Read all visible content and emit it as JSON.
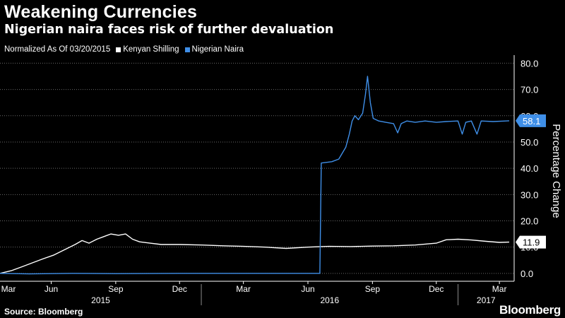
{
  "header": {
    "title": "Weakening Currencies",
    "subtitle": "Nigerian naira faces risk of further devaluation"
  },
  "legend": {
    "note": "Normalized As Of 03/20/2015",
    "items": [
      {
        "label": "Kenyan Shilling",
        "color": "#ffffff"
      },
      {
        "label": "Nigerian Naira",
        "color": "#3f8fe8"
      }
    ]
  },
  "footer": {
    "source": "Source: Bloomberg",
    "brand": "Bloomberg"
  },
  "chart_data": {
    "type": "line",
    "ylabel": "Percentage Change",
    "ylim": [
      -3,
      82
    ],
    "y_ticks": [
      {
        "value": 0,
        "label": "0.0"
      },
      {
        "value": 10,
        "label": "10.0"
      },
      {
        "value": 20,
        "label": "20.0"
      },
      {
        "value": 30,
        "label": "30.0"
      },
      {
        "value": 40,
        "label": "40.0"
      },
      {
        "value": 50,
        "label": "50.0"
      },
      {
        "value": 60,
        "label": "60.0"
      },
      {
        "value": 70,
        "label": "70.0"
      },
      {
        "value": 80,
        "label": "80.0"
      }
    ],
    "xlim": [
      "2015-03-20",
      "2017-03-22"
    ],
    "x_ticks": [
      {
        "date": "2015-03-01",
        "label": "Mar"
      },
      {
        "date": "2015-06-01",
        "label": "Jun"
      },
      {
        "date": "2015-09-01",
        "label": "Sep"
      },
      {
        "date": "2015-12-01",
        "label": "Dec"
      },
      {
        "date": "2016-03-01",
        "label": "Mar"
      },
      {
        "date": "2016-06-01",
        "label": "Jun"
      },
      {
        "date": "2016-09-01",
        "label": "Sep"
      },
      {
        "date": "2016-12-01",
        "label": "Dec"
      },
      {
        "date": "2017-03-01",
        "label": "Mar"
      }
    ],
    "year_labels": [
      {
        "label": "2015",
        "start": "2015-03-20",
        "end": "2016-01-01"
      },
      {
        "label": "2016",
        "start": "2016-01-01",
        "end": "2017-01-01"
      },
      {
        "label": "2017",
        "start": "2017-01-01",
        "end": "2017-03-22"
      }
    ],
    "year_separators": [
      "2016-01-01",
      "2017-01-01"
    ],
    "series": [
      {
        "name": "Kenyan Shilling",
        "color": "#ffffff",
        "last_value_label": "11.9",
        "points": [
          [
            "2015-03-20",
            0.0
          ],
          [
            "2015-04-05",
            1.0
          ],
          [
            "2015-04-20",
            2.5
          ],
          [
            "2015-05-05",
            4.0
          ],
          [
            "2015-05-20",
            5.5
          ],
          [
            "2015-06-05",
            7.0
          ],
          [
            "2015-06-20",
            9.0
          ],
          [
            "2015-07-05",
            11.0
          ],
          [
            "2015-07-15",
            12.5
          ],
          [
            "2015-07-25",
            11.5
          ],
          [
            "2015-08-05",
            13.0
          ],
          [
            "2015-08-15",
            14.0
          ],
          [
            "2015-08-25",
            15.0
          ],
          [
            "2015-09-05",
            14.5
          ],
          [
            "2015-09-15",
            15.0
          ],
          [
            "2015-09-25",
            13.0
          ],
          [
            "2015-10-05",
            12.0
          ],
          [
            "2015-10-20",
            11.5
          ],
          [
            "2015-11-05",
            11.0
          ],
          [
            "2015-12-01",
            11.0
          ],
          [
            "2016-01-01",
            10.8
          ],
          [
            "2016-02-01",
            10.5
          ],
          [
            "2016-03-01",
            10.3
          ],
          [
            "2016-04-01",
            10.0
          ],
          [
            "2016-05-01",
            9.5
          ],
          [
            "2016-06-01",
            10.0
          ],
          [
            "2016-07-01",
            10.3
          ],
          [
            "2016-08-01",
            10.2
          ],
          [
            "2016-09-01",
            10.4
          ],
          [
            "2016-10-01",
            10.5
          ],
          [
            "2016-11-01",
            10.8
          ],
          [
            "2016-12-01",
            11.5
          ],
          [
            "2016-12-15",
            12.8
          ],
          [
            "2017-01-01",
            13.0
          ],
          [
            "2017-01-20",
            12.7
          ],
          [
            "2017-02-10",
            12.2
          ],
          [
            "2017-03-01",
            11.8
          ],
          [
            "2017-03-15",
            11.9
          ]
        ]
      },
      {
        "name": "Nigerian Naira",
        "color": "#3f8fe8",
        "last_value_label": "58.1",
        "points": [
          [
            "2015-03-20",
            0.0
          ],
          [
            "2015-05-01",
            -0.2
          ],
          [
            "2015-07-01",
            0.0
          ],
          [
            "2015-09-01",
            -0.1
          ],
          [
            "2015-12-01",
            0.0
          ],
          [
            "2016-03-01",
            0.0
          ],
          [
            "2016-06-18",
            0.0
          ],
          [
            "2016-06-20",
            42.0
          ],
          [
            "2016-07-05",
            42.5
          ],
          [
            "2016-07-15",
            43.5
          ],
          [
            "2016-07-25",
            48.0
          ],
          [
            "2016-07-30",
            53.0
          ],
          [
            "2016-08-03",
            58.0
          ],
          [
            "2016-08-07",
            60.0
          ],
          [
            "2016-08-12",
            58.5
          ],
          [
            "2016-08-18",
            61.0
          ],
          [
            "2016-08-22",
            68.0
          ],
          [
            "2016-08-25",
            75.0
          ],
          [
            "2016-08-29",
            65.0
          ],
          [
            "2016-09-02",
            59.0
          ],
          [
            "2016-09-10",
            58.0
          ],
          [
            "2016-09-20",
            57.5
          ],
          [
            "2016-10-01",
            57.0
          ],
          [
            "2016-10-07",
            53.5
          ],
          [
            "2016-10-12",
            57.0
          ],
          [
            "2016-10-20",
            58.0
          ],
          [
            "2016-11-01",
            57.5
          ],
          [
            "2016-11-15",
            58.0
          ],
          [
            "2016-12-01",
            57.5
          ],
          [
            "2016-12-15",
            57.8
          ],
          [
            "2017-01-01",
            58.0
          ],
          [
            "2017-01-07",
            53.0
          ],
          [
            "2017-01-12",
            57.5
          ],
          [
            "2017-01-20",
            58.0
          ],
          [
            "2017-01-28",
            53.0
          ],
          [
            "2017-02-03",
            58.0
          ],
          [
            "2017-02-20",
            57.8
          ],
          [
            "2017-03-10",
            58.0
          ],
          [
            "2017-03-15",
            58.1
          ]
        ]
      }
    ]
  }
}
